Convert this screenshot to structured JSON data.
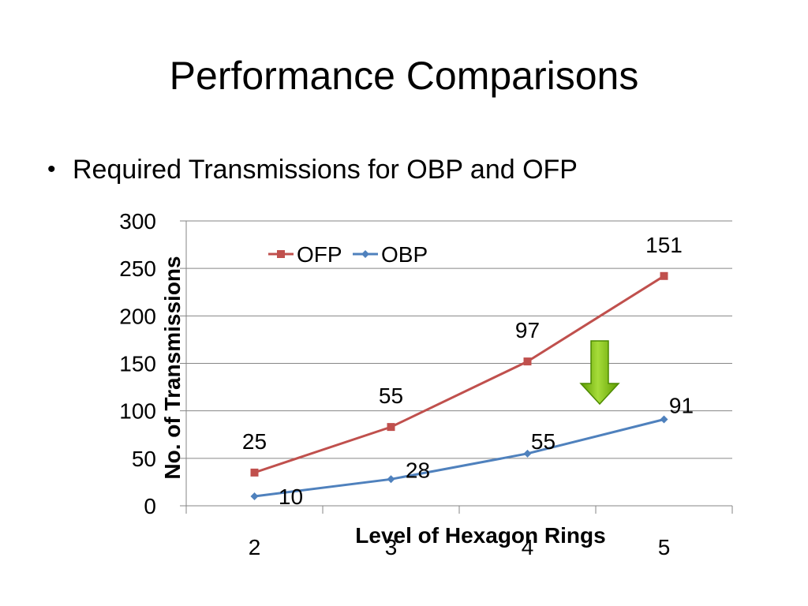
{
  "slide": {
    "title": "Performance Comparisons",
    "bullet": "Required Transmissions for OBP and OFP"
  },
  "chart_data": {
    "type": "line",
    "categories": [
      "2",
      "3",
      "4",
      "5"
    ],
    "xlabel": "Level of Hexagon Rings",
    "ylabel": "No. of Transmissions",
    "ylim": [
      0,
      300
    ],
    "yticks": [
      "0",
      "50",
      "100",
      "150",
      "200",
      "250",
      "300"
    ],
    "grid": true,
    "legend": "top-left",
    "series": [
      {
        "name": "OFP",
        "color": "#c0504d",
        "marker": "square",
        "values": [
          35,
          83,
          152,
          242
        ],
        "labels": [
          "25",
          "55",
          "97",
          "151"
        ]
      },
      {
        "name": "OBP",
        "color": "#4f81bd",
        "marker": "diamond",
        "values": [
          10,
          28,
          55,
          91
        ],
        "labels": [
          "10",
          "28",
          "55",
          "91"
        ]
      }
    ],
    "annotation": {
      "type": "arrow-down",
      "color": "#7ab800",
      "between_category": "4-5"
    }
  }
}
